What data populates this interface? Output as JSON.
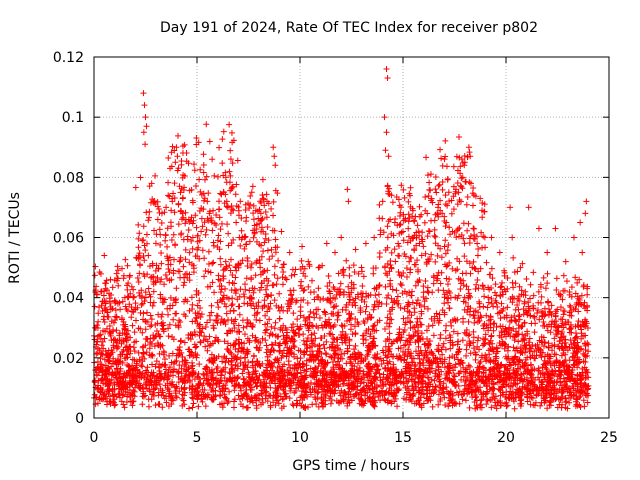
{
  "chart_data": {
    "type": "scatter",
    "title": "Day 191 of 2024, Rate Of TEC Index for receiver p802",
    "xlabel": "GPS time / hours",
    "ylabel": "ROTI / TECUs",
    "xlim": [
      0,
      25
    ],
    "ylim": [
      0,
      0.12
    ],
    "xticks": [
      0,
      5,
      10,
      15,
      20,
      25
    ],
    "xtick_labels": [
      "0",
      "5",
      "10",
      "15",
      "20",
      "25"
    ],
    "yticks": [
      0,
      0.02,
      0.04,
      0.06,
      0.08,
      0.1,
      0.12
    ],
    "ytick_labels": [
      "0",
      "0.02",
      "0.04",
      "0.06",
      "0.08",
      "0.1",
      "0.12"
    ],
    "grid": true,
    "marker": "plus",
    "color": "#ff0000",
    "series": [
      {
        "points": [
          [
            2.4,
            0.108
          ],
          [
            2.45,
            0.104
          ],
          [
            2.5,
            0.1
          ],
          [
            2.42,
            0.095
          ],
          [
            2.48,
            0.091
          ],
          [
            2.55,
            0.097
          ],
          [
            4.0,
            0.09
          ],
          [
            4.05,
            0.087
          ],
          [
            3.95,
            0.085
          ],
          [
            4.1,
            0.083
          ],
          [
            4.2,
            0.075
          ],
          [
            3.8,
            0.072
          ],
          [
            2.8,
            0.078
          ],
          [
            2.9,
            0.072
          ],
          [
            3.1,
            0.066
          ],
          [
            3.3,
            0.068
          ],
          [
            3.5,
            0.07
          ],
          [
            3.6,
            0.074
          ],
          [
            4.3,
            0.068
          ],
          [
            4.6,
            0.066
          ],
          [
            4.8,
            0.06
          ],
          [
            5.2,
            0.062
          ],
          [
            5.5,
            0.072
          ],
          [
            5.6,
            0.068
          ],
          [
            6.3,
            0.075
          ],
          [
            6.4,
            0.08
          ],
          [
            6.5,
            0.07
          ],
          [
            6.9,
            0.065
          ],
          [
            7.1,
            0.072
          ],
          [
            7.3,
            0.06
          ],
          [
            7.8,
            0.064
          ],
          [
            8.1,
            0.068
          ],
          [
            8.4,
            0.072
          ],
          [
            8.7,
            0.09
          ],
          [
            8.75,
            0.087
          ],
          [
            8.8,
            0.084
          ],
          [
            9.1,
            0.062
          ],
          [
            9.5,
            0.055
          ],
          [
            10.1,
            0.057
          ],
          [
            10.4,
            0.052
          ],
          [
            10.9,
            0.05
          ],
          [
            11.3,
            0.058
          ],
          [
            11.7,
            0.055
          ],
          [
            12.0,
            0.06
          ],
          [
            12.3,
            0.076
          ],
          [
            12.35,
            0.072
          ],
          [
            12.7,
            0.056
          ],
          [
            13.2,
            0.058
          ],
          [
            13.6,
            0.06
          ],
          [
            13.9,
            0.061
          ],
          [
            14.2,
            0.116
          ],
          [
            14.25,
            0.113
          ],
          [
            14.1,
            0.1
          ],
          [
            14.2,
            0.095
          ],
          [
            14.15,
            0.089
          ],
          [
            14.3,
            0.087
          ],
          [
            14.6,
            0.065
          ],
          [
            15.0,
            0.062
          ],
          [
            15.3,
            0.052
          ],
          [
            15.8,
            0.058
          ],
          [
            16.3,
            0.062
          ],
          [
            16.7,
            0.07
          ],
          [
            16.9,
            0.068
          ],
          [
            17.1,
            0.065
          ],
          [
            17.4,
            0.062
          ],
          [
            17.7,
            0.075
          ],
          [
            17.9,
            0.08
          ],
          [
            18.0,
            0.085
          ],
          [
            18.2,
            0.09
          ],
          [
            18.3,
            0.078
          ],
          [
            18.6,
            0.058
          ],
          [
            19.3,
            0.06
          ],
          [
            19.7,
            0.055
          ],
          [
            20.2,
            0.07
          ],
          [
            20.3,
            0.06
          ],
          [
            20.7,
            0.05
          ],
          [
            21.1,
            0.07
          ],
          [
            21.6,
            0.063
          ],
          [
            22.0,
            0.055
          ],
          [
            22.4,
            0.063
          ],
          [
            22.9,
            0.052
          ],
          [
            23.3,
            0.06
          ],
          [
            23.6,
            0.065
          ],
          [
            23.9,
            0.072
          ],
          [
            23.85,
            0.068
          ],
          [
            23.7,
            0.055
          ],
          [
            0.5,
            0.054
          ],
          [
            0.8,
            0.046
          ],
          [
            1.1,
            0.048
          ],
          [
            1.5,
            0.04
          ],
          [
            1.9,
            0.04
          ],
          [
            0.2,
            0.032
          ],
          [
            0.1,
            0.03
          ]
        ]
      }
    ]
  }
}
